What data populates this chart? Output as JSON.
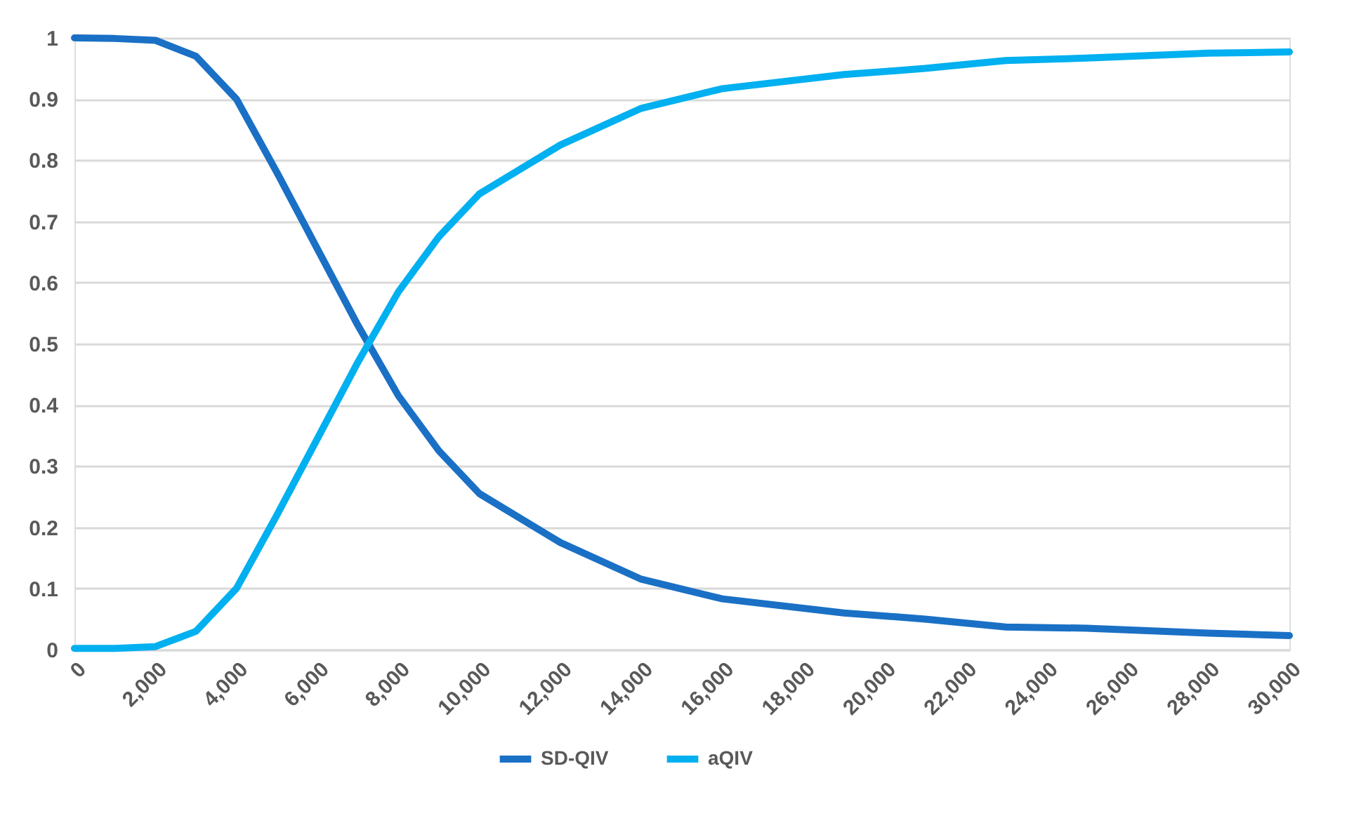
{
  "chart_data": {
    "type": "line",
    "x": [
      0,
      1000,
      2000,
      3000,
      4000,
      5000,
      6000,
      7000,
      8000,
      9000,
      10000,
      12000,
      14000,
      16000,
      19000,
      21000,
      23000,
      25000,
      28000,
      30000
    ],
    "series": [
      {
        "name": "SD-QIV",
        "color": "#1a70c5",
        "values": [
          1,
          0.999,
          0.996,
          0.97,
          0.9,
          0.78,
          0.655,
          0.53,
          0.415,
          0.325,
          0.255,
          0.175,
          0.115,
          0.083,
          0.06,
          0.05,
          0.037,
          0.035,
          0.027,
          0.023
        ]
      },
      {
        "name": "aQIV",
        "color": "#00b0f0",
        "values": [
          0.002,
          0.002,
          0.005,
          0.03,
          0.1,
          0.22,
          0.345,
          0.47,
          0.585,
          0.675,
          0.745,
          0.825,
          0.885,
          0.917,
          0.94,
          0.95,
          0.963,
          0.967,
          0.975,
          0.977
        ]
      }
    ],
    "xlim": [
      0,
      30000
    ],
    "xticks": [
      0,
      {
        "value": 2000,
        "label": "2,000"
      },
      {
        "value": 4000,
        "label": "4,000"
      },
      {
        "value": 6000,
        "label": "6,000"
      },
      {
        "value": 8000,
        "label": "8,000"
      },
      {
        "value": 10000,
        "label": "10,000"
      },
      {
        "value": 12000,
        "label": "12,000"
      },
      {
        "value": 14000,
        "label": "14,000"
      },
      {
        "value": 16000,
        "label": "16,000"
      },
      {
        "value": 18000,
        "label": "18,000"
      },
      {
        "value": 20000,
        "label": "20,000"
      },
      {
        "value": 22000,
        "label": "22,000"
      },
      {
        "value": 24000,
        "label": "24,000"
      },
      {
        "value": 26000,
        "label": "26,000"
      },
      {
        "value": 28000,
        "label": "28,000"
      },
      {
        "value": 30000,
        "label": "30,000"
      }
    ],
    "ylim": [
      0,
      1
    ],
    "yticks": [
      0,
      0.1,
      0.2,
      0.3,
      0.4,
      0.5,
      0.6,
      0.7,
      0.8,
      0.9,
      1
    ],
    "grid": "y",
    "legend": "bottom",
    "marker": "none",
    "line_style": "solid"
  }
}
